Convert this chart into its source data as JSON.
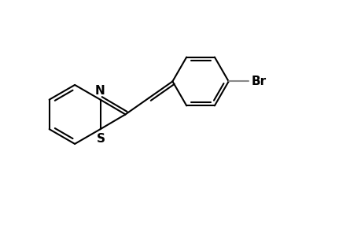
{
  "background_color": "#ffffff",
  "line_color": "#000000",
  "gray_color": "#888888",
  "bond_lw": 1.5,
  "font_size": 11,
  "label_N": "N",
  "label_S": "S",
  "label_Br": "Br",
  "xlim": [
    0,
    10
  ],
  "ylim": [
    0,
    6.5
  ],
  "figsize": [
    4.6,
    3.0
  ],
  "dpi": 100
}
